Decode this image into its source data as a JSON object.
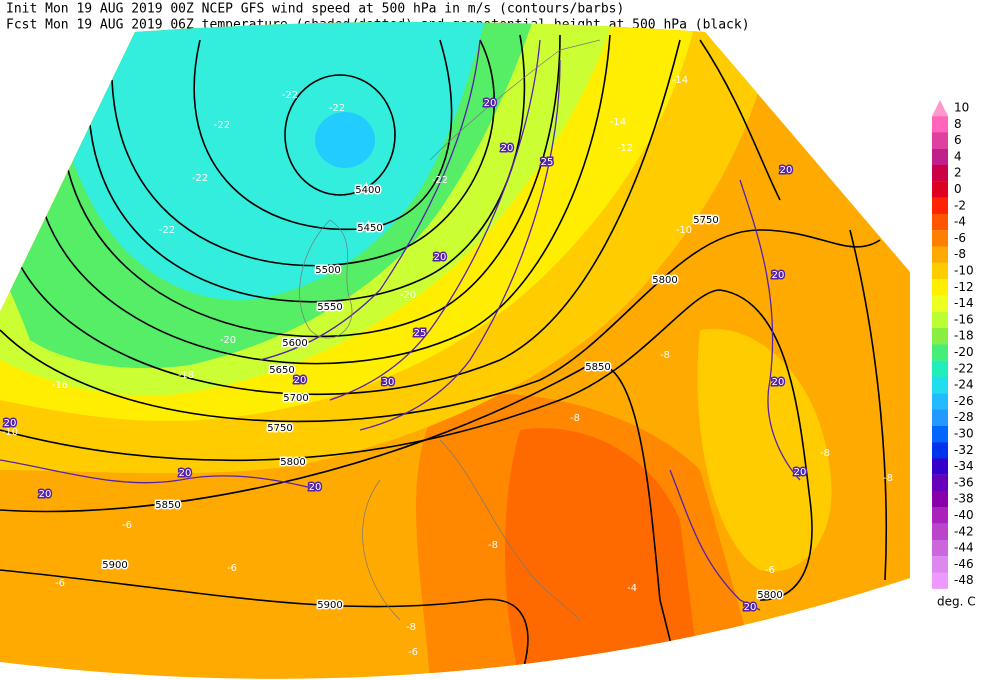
{
  "header": {
    "line1": "Init  Mon 19 AUG 2019 00Z  NCEP GFS wind speed at 500 hPa in m/s (contours/barbs)",
    "line2": "Fcst Mon 19 AUG 2019 06Z  temperature (shaded/dotted) and geopotential height at 500 hPa (black)"
  },
  "colorbar": {
    "labels": [
      10,
      8,
      6,
      4,
      2,
      0,
      -2,
      -4,
      -6,
      -8,
      -10,
      -12,
      -14,
      -16,
      -18,
      -20,
      -22,
      -24,
      -26,
      -28,
      -30,
      -32,
      -34,
      -36,
      -38,
      -40,
      -42,
      -44,
      -46,
      -48
    ],
    "colors": [
      "#ff99cc",
      "#ff66bb",
      "#e040a0",
      "#c0208a",
      "#cc0044",
      "#dd0022",
      "#ff2200",
      "#ff5500",
      "#ff8000",
      "#ffaa00",
      "#ffcc00",
      "#ffee00",
      "#eeff22",
      "#bbff33",
      "#88ee44",
      "#44ee77",
      "#22eebb",
      "#22ddee",
      "#22bbff",
      "#2299ff",
      "#0066ff",
      "#0033ee",
      "#3300cc",
      "#6600bb",
      "#8800aa",
      "#aa22bb",
      "#bb44cc",
      "#cc66dd",
      "#dd88ee",
      "#ee99ff"
    ],
    "unit": "deg. C"
  },
  "map": {
    "height_labels": [
      5400,
      5450,
      5500,
      5550,
      5600,
      5650,
      5700,
      5750,
      5800,
      5850,
      5900,
      5900,
      5750,
      5800,
      5850,
      5800
    ],
    "temperature_labels": [
      -22,
      -22,
      -22,
      -22,
      -22,
      -22,
      -20,
      -20,
      -18,
      -16,
      -14,
      -14,
      -12,
      -10,
      -10,
      -8,
      -8,
      -8,
      -8,
      -8,
      -8,
      -6,
      -6,
      -6,
      -6,
      -6,
      -4
    ],
    "wind_labels": [
      20,
      20,
      20,
      20,
      20,
      20,
      20,
      20,
      20,
      20,
      20,
      20,
      20,
      25,
      25,
      30
    ]
  }
}
